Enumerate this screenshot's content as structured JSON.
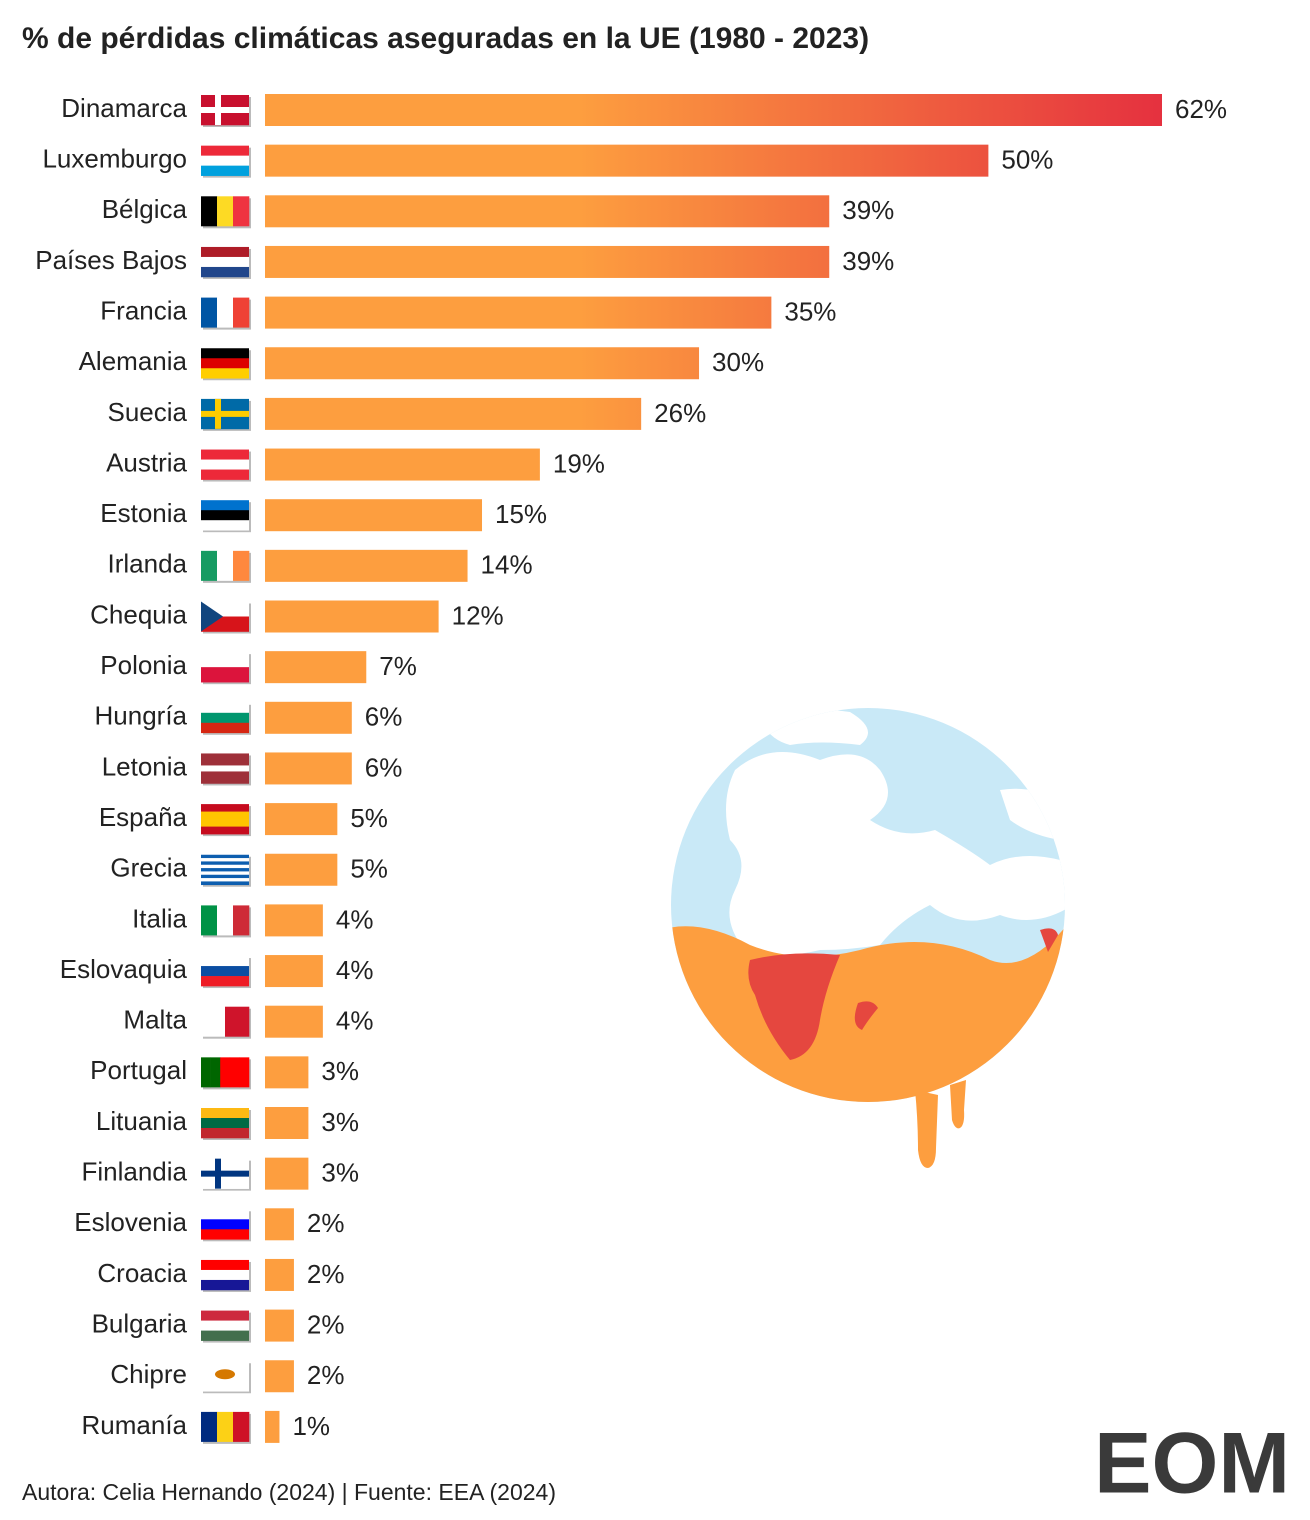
{
  "chart_data": {
    "type": "bar",
    "orientation": "horizontal",
    "title": "% de pérdidas climáticas aseguradas en la UE (1980 - 2023)",
    "categories": [
      "Dinamarca",
      "Luxemburgo",
      "Bélgica",
      "Países Bajos",
      "Francia",
      "Alemania",
      "Suecia",
      "Austria",
      "Estonia",
      "Irlanda",
      "Chequia",
      "Polonia",
      "Hungría",
      "Letonia",
      "España",
      "Grecia",
      "Italia",
      "Eslovaquia",
      "Malta",
      "Portugal",
      "Lituania",
      "Finlandia",
      "Eslovenia",
      "Croacia",
      "Bulgaria",
      "Chipre",
      "Rumanía"
    ],
    "values": [
      62,
      50,
      39,
      39,
      35,
      30,
      26,
      19,
      15,
      14,
      12,
      7,
      6,
      6,
      5,
      5,
      4,
      4,
      4,
      3,
      3,
      3,
      2,
      2,
      2,
      2,
      1
    ],
    "value_labels": [
      "62%",
      "50%",
      "39%",
      "39%",
      "35%",
      "30%",
      "26%",
      "19%",
      "15%",
      "14%",
      "12%",
      "7%",
      "6%",
      "6%",
      "5%",
      "5%",
      "4%",
      "4%",
      "4%",
      "3%",
      "3%",
      "3%",
      "2%",
      "2%",
      "2%",
      "2%",
      "1%"
    ],
    "color": "#fd9e3f",
    "gradient_end_color": "#e5313f",
    "footer": "Autora: Celia Hernando (2024) | Fuente: EEA (2024)",
    "logo": "EOM"
  }
}
